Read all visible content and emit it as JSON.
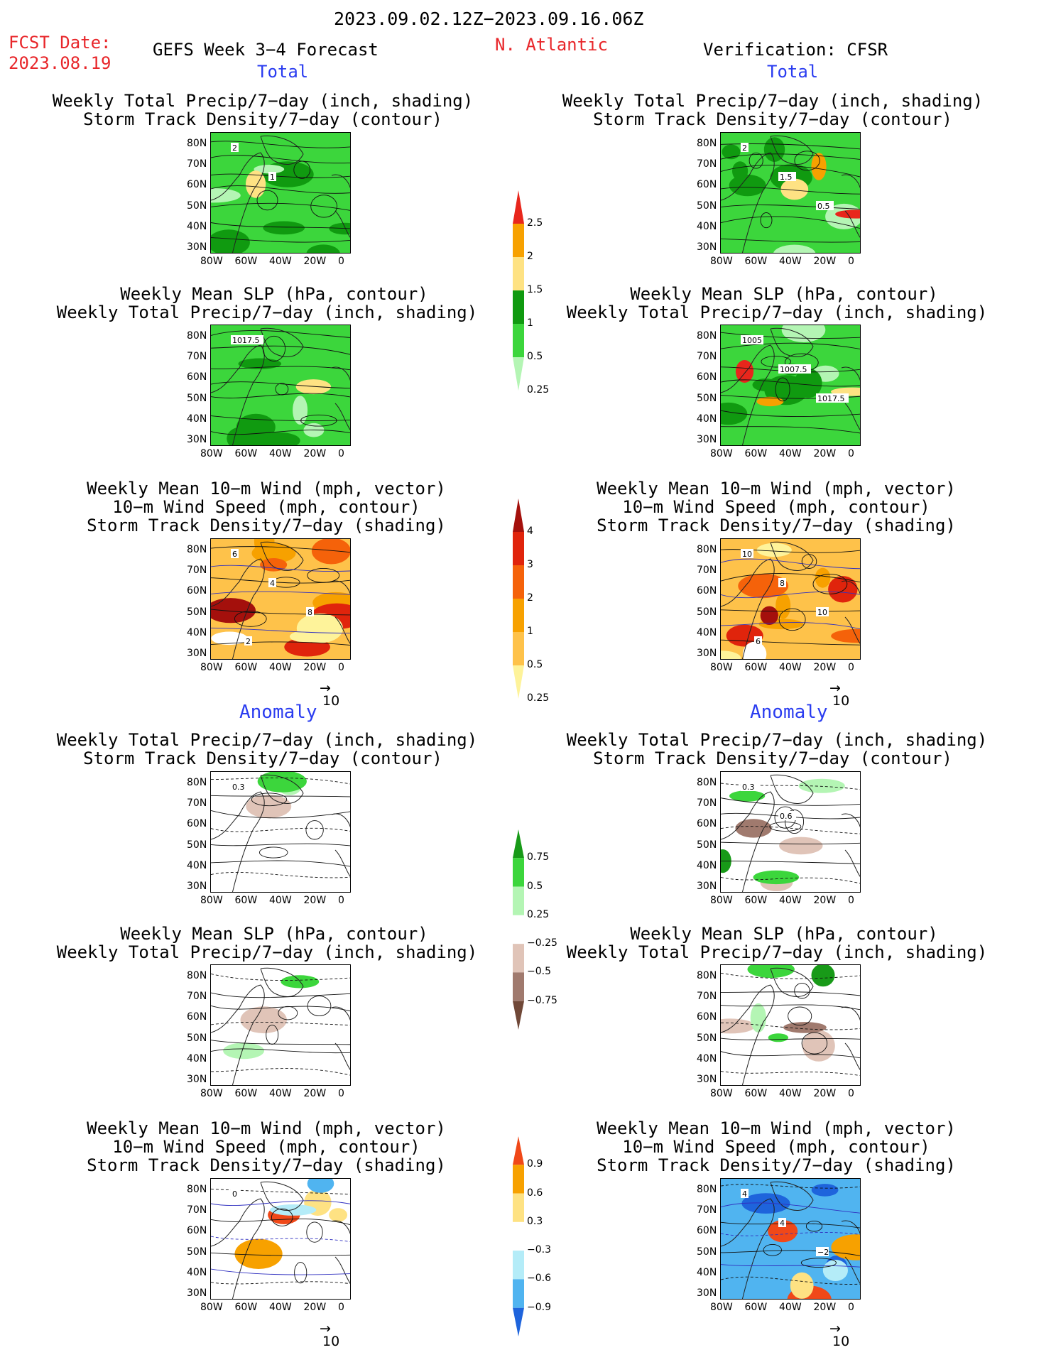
{
  "header": {
    "date_range": "2023.09.02.12Z−2023.09.16.06Z",
    "fcst_label": "FCST Date:",
    "fcst_date": "2023.08.19",
    "title": "GEFS Week 3−4 Forecast",
    "region": "N. Atlantic",
    "verification": "Verification: CFSR"
  },
  "sections": {
    "total": "Total",
    "anomaly": "Anomaly"
  },
  "panel_titles": {
    "precip_storm": [
      "Weekly Total Precip/7−day (inch, shading)",
      "Storm Track Density/7−day (contour)"
    ],
    "slp_precip": [
      "Weekly Mean SLP (hPa, contour)",
      "Weekly Total Precip/7−day (inch, shading)"
    ],
    "wind_storm": [
      "Weekly Mean 10−m Wind (mph, vector)",
      "10−m Wind Speed (mph, contour)",
      "Storm Track Density/7−day (shading)"
    ]
  },
  "axes": {
    "lat_ticks": [
      "80N",
      "70N",
      "60N",
      "50N",
      "40N",
      "30N"
    ],
    "lon_ticks": [
      "80W",
      "60W",
      "40W",
      "20W",
      "0"
    ]
  },
  "vector_ref": "10",
  "colorbars": {
    "precip_total": {
      "labels": [
        "2.5",
        "2",
        "1.5",
        "1",
        "0.5",
        "0.25"
      ],
      "colors": [
        "#e8261c",
        "#f7a100",
        "#fee283",
        "#109a10",
        "#3cd63c",
        "#b4f5b4"
      ]
    },
    "storm_total": {
      "labels": [
        "4",
        "3",
        "2",
        "1",
        "0.5",
        "0.25"
      ],
      "colors": [
        "#a4100c",
        "#e0240c",
        "#f5620a",
        "#f7a100",
        "#fec24a",
        "#fef39a"
      ]
    },
    "precip_anom": {
      "labels": [
        "0.75",
        "0.5",
        "0.25",
        "−0.25",
        "−0.5",
        "−0.75"
      ],
      "colors": [
        "#189a18",
        "#3cd63c",
        "#b4f5b4",
        "#ffffff",
        "#e0c4b8",
        "#a07a6e",
        "#704838"
      ]
    },
    "storm_anom": {
      "labels": [
        "0.9",
        "0.6",
        "0.3",
        "−0.3",
        "−0.6",
        "−0.9"
      ],
      "colors": [
        "#f04818",
        "#f7a100",
        "#fee283",
        "#ffffff",
        "#b4ecf8",
        "#50b4f0",
        "#1e64dc"
      ]
    }
  },
  "contour_labels": {
    "left_precip_total": [
      "2",
      "1"
    ],
    "right_precip_total": [
      "2",
      "1.5",
      "0.5"
    ],
    "left_slp_total": [
      "1017.5"
    ],
    "right_slp_total": [
      "1005",
      "1007.5",
      "1017.5"
    ],
    "left_wind_total": [
      "6",
      "4",
      "8",
      "2"
    ],
    "right_wind_total": [
      "10",
      "8",
      "10",
      "6"
    ],
    "left_precip_anom": [
      "0.3"
    ],
    "right_precip_anom": [
      "0.3",
      "0.6"
    ],
    "left_wind_anom": [
      "0"
    ],
    "right_wind_anom": [
      "4",
      "4",
      "−2"
    ]
  }
}
